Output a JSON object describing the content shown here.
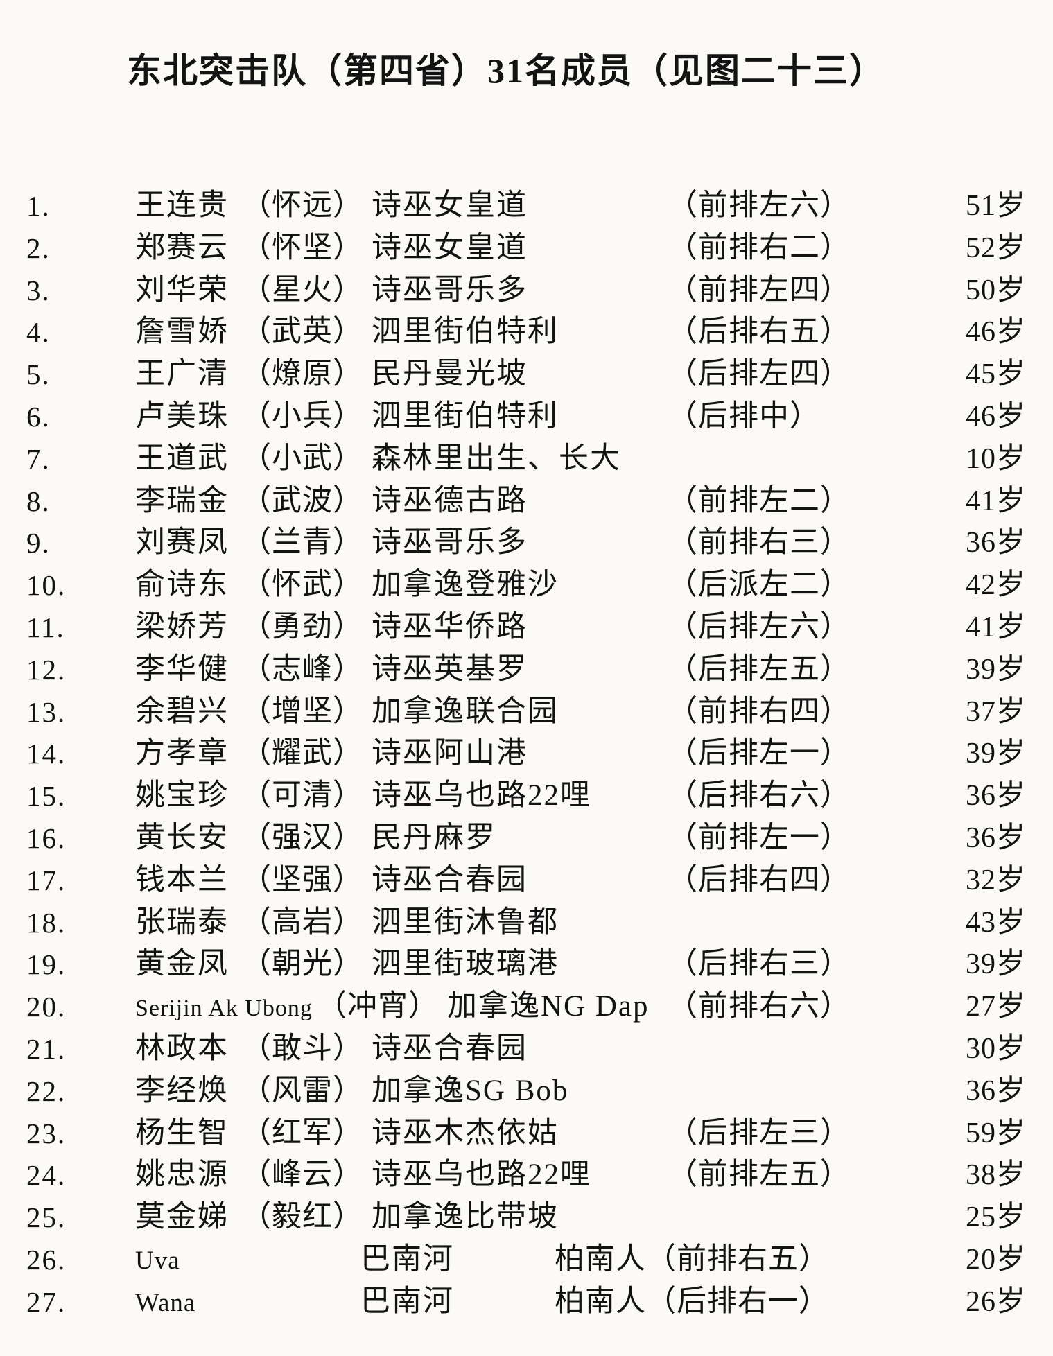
{
  "title": "东北突击队（第四省）31名成员（见图二十三）",
  "members": [
    {
      "num": "1.",
      "name": "王连贵",
      "alias": "（怀远）",
      "location": "诗巫女皇道",
      "position": "（前排左六）",
      "age": "51岁"
    },
    {
      "num": "2.",
      "name": "郑赛云",
      "alias": "（怀坚）",
      "location": "诗巫女皇道",
      "position": "（前排右二）",
      "age": "52岁"
    },
    {
      "num": "3.",
      "name": "刘华荣",
      "alias": "（星火）",
      "location": "诗巫哥乐多",
      "position": "（前排左四）",
      "age": "50岁"
    },
    {
      "num": "4.",
      "name": "詹雪娇",
      "alias": "（武英）",
      "location": "泗里街伯特利",
      "position": "（后排右五）",
      "age": "46岁"
    },
    {
      "num": "5.",
      "name": "王广清",
      "alias": "（燎原）",
      "location": "民丹曼光坡",
      "position": "（后排左四）",
      "age": "45岁"
    },
    {
      "num": "6.",
      "name": "卢美珠",
      "alias": "（小兵）",
      "location": "泗里街伯特利",
      "position": "（后排中）",
      "age": "46岁"
    },
    {
      "num": "7.",
      "name": "王道武",
      "alias": "（小武）",
      "location": "森林里出生、长大",
      "position": "",
      "age": "10岁"
    },
    {
      "num": "8.",
      "name": "李瑞金",
      "alias": "（武波）",
      "location": "诗巫德古路",
      "position": "（前排左二）",
      "age": "41岁"
    },
    {
      "num": "9.",
      "name": "刘赛凤",
      "alias": "（兰青）",
      "location": "诗巫哥乐多",
      "position": "（前排右三）",
      "age": "36岁"
    },
    {
      "num": "10.",
      "name": "俞诗东",
      "alias": "（怀武）",
      "location": "加拿逸登雅沙",
      "position": "（后派左二）",
      "age": "42岁"
    },
    {
      "num": "11.",
      "name": "梁娇芳",
      "alias": "（勇劲）",
      "location": "诗巫华侨路",
      "position": "（后排左六）",
      "age": "41岁"
    },
    {
      "num": "12.",
      "name": "李华健",
      "alias": "（志峰）",
      "location": "诗巫英基罗",
      "position": "（后排左五）",
      "age": "39岁"
    },
    {
      "num": "13.",
      "name": "余碧兴",
      "alias": "（增坚）",
      "location": "加拿逸联合园",
      "position": "（前排右四）",
      "age": "37岁"
    },
    {
      "num": "14.",
      "name": "方孝章",
      "alias": "（耀武）",
      "location": "诗巫阿山港",
      "position": "（后排左一）",
      "age": "39岁"
    },
    {
      "num": "15.",
      "name": "姚宝珍",
      "alias": "（可清）",
      "location": "诗巫乌也路22哩",
      "position": "（后排右六）",
      "age": "36岁"
    },
    {
      "num": "16.",
      "name": "黄长安",
      "alias": "（强汉）",
      "location": "民丹麻罗",
      "position": "（前排左一）",
      "age": "36岁"
    },
    {
      "num": "17.",
      "name": "钱本兰",
      "alias": "（坚强）",
      "location": "诗巫合春园",
      "position": "（后排右四）",
      "age": "32岁"
    },
    {
      "num": "18.",
      "name": "张瑞泰",
      "alias": "（高岩）",
      "location": "泗里街沐鲁都",
      "position": "",
      "age": "43岁"
    },
    {
      "num": "19.",
      "name": "黄金凤",
      "alias": "（朝光）",
      "location": "泗里街玻璃港",
      "position": "（后排右三）",
      "age": "39岁"
    },
    {
      "num": "20.",
      "name": "Serijin Ak Ubong",
      "alias": "（冲宵）",
      "location": "加拿逸NG Dap",
      "position": "（前排右六）",
      "age": "27岁",
      "latin_name": true
    },
    {
      "num": "21.",
      "name": "林政本",
      "alias": "（敢斗）",
      "location": "诗巫合春园",
      "position": "",
      "age": "30岁"
    },
    {
      "num": "22.",
      "name": "李经焕",
      "alias": "（风雷）",
      "location": "加拿逸SG Bob",
      "position": "",
      "age": "36岁"
    },
    {
      "num": "23.",
      "name": "杨生智",
      "alias": "（红军）",
      "location": "诗巫木杰依姑",
      "position": "（后排左三）",
      "age": "59岁"
    },
    {
      "num": "24.",
      "name": "姚忠源",
      "alias": "（峰云）",
      "location": "诗巫乌也路22哩",
      "position": "（前排左五）",
      "age": "38岁"
    },
    {
      "num": "25.",
      "name": "莫金娣",
      "alias": "（毅红）",
      "location": "加拿逸比带坡",
      "position": "",
      "age": "25岁"
    },
    {
      "num": "26.",
      "name": "Uva",
      "alias": "",
      "location": "巴南河",
      "ethnic": "柏南人",
      "position": "（前排右五）",
      "age": "20岁",
      "tabular": true
    },
    {
      "num": "27.",
      "name": "Wana",
      "alias": "",
      "location": "巴南河",
      "ethnic": "柏南人",
      "position": "（后排右一）",
      "age": "26岁",
      "tabular": true
    }
  ]
}
